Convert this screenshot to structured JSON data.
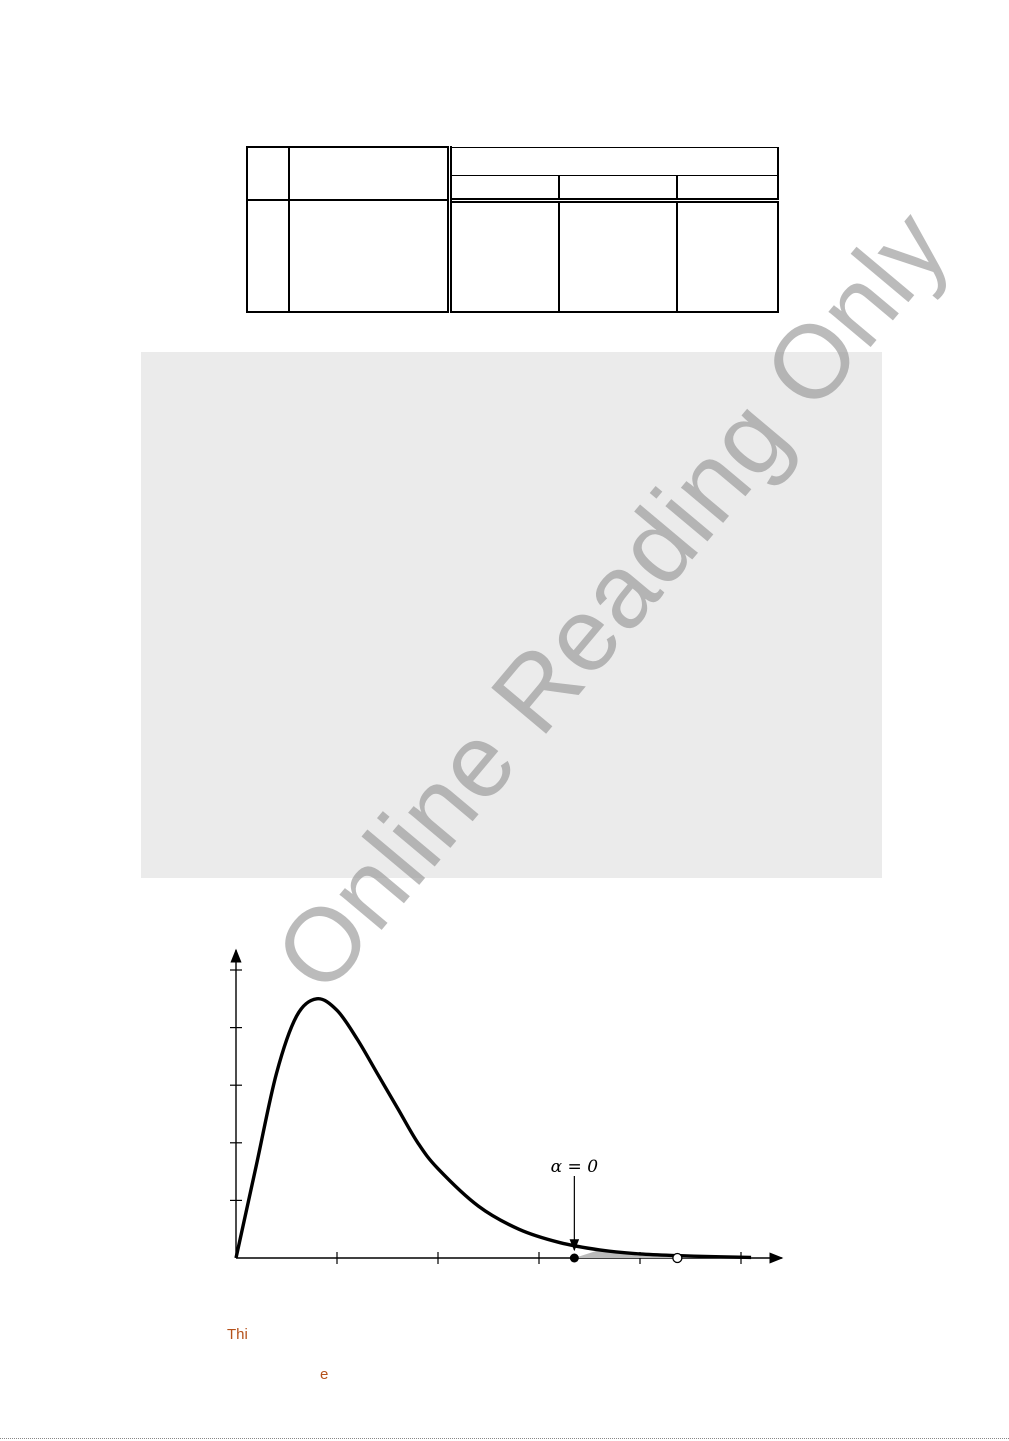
{
  "table": {
    "rows": 2
  },
  "watermark": {
    "text": "Online Reading Only"
  },
  "chart_data": {
    "type": "line",
    "title": "",
    "xlabel": "",
    "ylabel": "",
    "xlim": [
      0,
      5.4
    ],
    "ylim": [
      0,
      5.2
    ],
    "x_ticks": [
      0,
      1,
      2,
      3,
      4,
      5
    ],
    "y_ticks": [
      0,
      1,
      2,
      3,
      4,
      5
    ],
    "series": [
      {
        "x": [
          0,
          0.2,
          0.4,
          0.6,
          0.8,
          1.0,
          1.2,
          1.4,
          1.6,
          1.8,
          2.0,
          2.4,
          2.8,
          3.2,
          3.6,
          4.0,
          4.4,
          4.8,
          5.1
        ],
        "values": [
          0,
          1.6,
          3.2,
          4.2,
          4.5,
          4.3,
          3.8,
          3.2,
          2.6,
          2.0,
          1.55,
          0.9,
          0.5,
          0.27,
          0.14,
          0.07,
          0.04,
          0.02,
          0.01
        ]
      }
    ],
    "annotations": [
      {
        "label": "α = 0",
        "x": 3.35,
        "y": 0.05,
        "marker": "filled"
      },
      {
        "label": "",
        "x": 4.37,
        "y": 0.02,
        "marker": "open"
      }
    ]
  },
  "footer": {
    "line1": "Thi",
    "line2": "e"
  }
}
